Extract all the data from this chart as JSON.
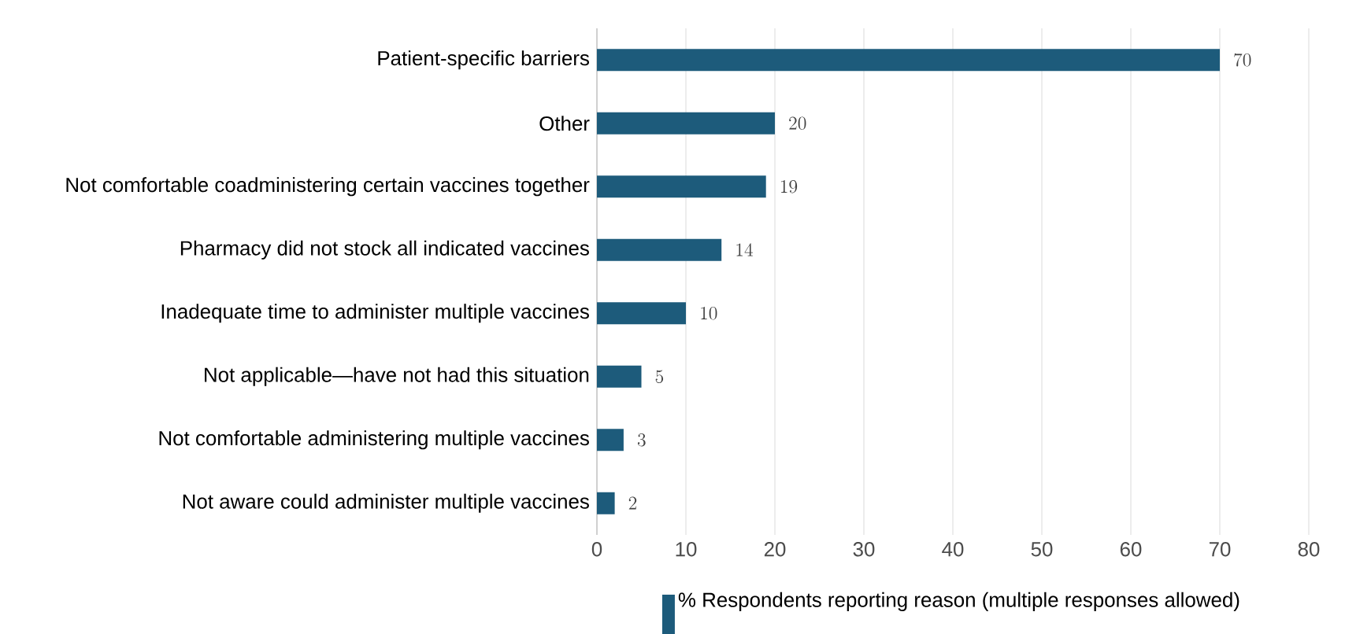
{
  "chart_data": {
    "type": "bar",
    "orientation": "horizontal",
    "categories": [
      "Patient-specific barriers",
      "Other",
      "Not comfortable coadministering certain vaccines together",
      "Pharmacy did not stock all indicated vaccines",
      "Inadequate time to administer multiple vaccines",
      "Not applicable—have not had this situation",
      "Not comfortable administering multiple vaccines",
      "Not aware could administer multiple vaccines"
    ],
    "series": [
      {
        "name": "% Respondents reporting reason (multiple responses allowed)",
        "color": "#1d5b7b",
        "values": [
          70,
          20,
          19,
          14,
          10,
          5,
          3,
          2
        ]
      }
    ],
    "xlim": [
      0,
      80
    ],
    "xticks": [
      0,
      10,
      20,
      30,
      40,
      50,
      60,
      70,
      80
    ],
    "grid": "x",
    "legend": "bottom",
    "data_labels": true
  }
}
